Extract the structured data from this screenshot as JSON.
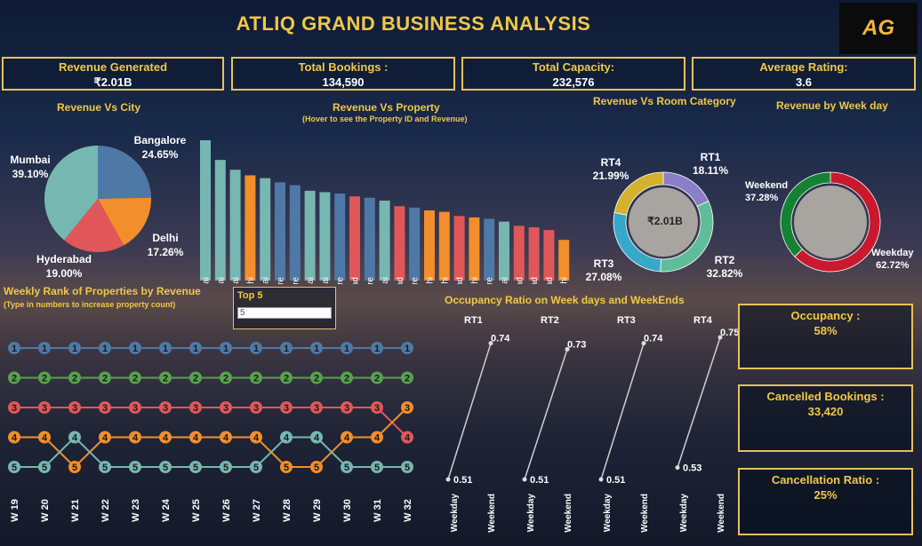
{
  "header": {
    "title": "ATLIQ GRAND BUSINESS ANALYSIS",
    "logo_text": "AG"
  },
  "kpis": {
    "revenue": {
      "label": "Revenue Generated",
      "value": "₹2.01B"
    },
    "bookings": {
      "label": "Total Bookings :",
      "value": "134,590"
    },
    "capacity": {
      "label": "Total Capacity:",
      "value": "232,576"
    },
    "rating": {
      "label": "Average Rating:",
      "value": "3.6"
    }
  },
  "revenue_vs_city": {
    "title": "Revenue Vs City",
    "slices": [
      {
        "city": "Bangalore",
        "pct": "24.65%",
        "value": 24.65,
        "color": "#4e79a7"
      },
      {
        "city": "Delhi",
        "pct": "17.26%",
        "value": 17.26,
        "color": "#f28e2b"
      },
      {
        "city": "Hyderabad",
        "pct": "19.00%",
        "value": 19.0,
        "color": "#e15759"
      },
      {
        "city": "Mumbai",
        "pct": "39.10%",
        "value": 39.1,
        "color": "#76b7b2"
      }
    ]
  },
  "revenue_vs_property": {
    "title": "Revenue Vs Property",
    "subtitle": "(Hover to see the Property ID and Revenue)",
    "bars": [
      {
        "city": "Mumbai",
        "value": 100
      },
      {
        "city": "Mumbai",
        "value": 86
      },
      {
        "city": "Mumbai",
        "value": 79
      },
      {
        "city": "Delhi",
        "value": 75
      },
      {
        "city": "Mumbai",
        "value": 73
      },
      {
        "city": "Bangalore",
        "value": 70
      },
      {
        "city": "Bangalore",
        "value": 68
      },
      {
        "city": "Mumbai",
        "value": 64
      },
      {
        "city": "Mumbai",
        "value": 63
      },
      {
        "city": "Bangalore",
        "value": 62
      },
      {
        "city": "Hyderabad",
        "value": 60
      },
      {
        "city": "Bangalore",
        "value": 59
      },
      {
        "city": "Mumbai",
        "value": 57
      },
      {
        "city": "Hyderabad",
        "value": 53
      },
      {
        "city": "Bangalore",
        "value": 52
      },
      {
        "city": "Delhi",
        "value": 50
      },
      {
        "city": "Delhi",
        "value": 49
      },
      {
        "city": "Hyderabad",
        "value": 46
      },
      {
        "city": "Delhi",
        "value": 45
      },
      {
        "city": "Bangalore",
        "value": 44
      },
      {
        "city": "Mumbai",
        "value": 42
      },
      {
        "city": "Hyderabad",
        "value": 39
      },
      {
        "city": "Hyderabad",
        "value": 38
      },
      {
        "city": "Hyderabad",
        "value": 36
      },
      {
        "city": "Delhi",
        "value": 29
      }
    ]
  },
  "revenue_vs_room": {
    "title": "Revenue Vs Room Category",
    "center": "₹2.01B",
    "slices": [
      {
        "name": "RT1",
        "pct": "18.11%",
        "value": 18.11,
        "color": "#8c7fc8"
      },
      {
        "name": "RT2",
        "pct": "32.82%",
        "value": 32.82,
        "color": "#5fbd9a"
      },
      {
        "name": "RT3",
        "pct": "27.08%",
        "value": 27.08,
        "color": "#38a8c8"
      },
      {
        "name": "RT4",
        "pct": "21.99%",
        "value": 21.99,
        "color": "#d4b12e"
      }
    ]
  },
  "revenue_by_weekday": {
    "title": "Revenue by Week day",
    "slices": [
      {
        "name": "Weekday",
        "pct": "62.72%",
        "value": 62.72,
        "color": "#c8192e"
      },
      {
        "name": "Weekend",
        "pct": "37.28%",
        "value": 37.28,
        "color": "#148232"
      }
    ]
  },
  "weekly_rank": {
    "title": "Weekly Rank of Properties by Revenue",
    "subtitle": "(Type in numbers to increase property count)",
    "weeks": [
      "W 19",
      "W 20",
      "W 21",
      "W 22",
      "W 23",
      "W 24",
      "W 25",
      "W 26",
      "W 27",
      "W 28",
      "W 29",
      "W 30",
      "W 31",
      "W 32"
    ],
    "series": [
      {
        "color": "#4e79a7",
        "ranks": [
          1,
          1,
          1,
          1,
          1,
          1,
          1,
          1,
          1,
          1,
          1,
          1,
          1,
          1
        ]
      },
      {
        "color": "#59a14f",
        "ranks": [
          2,
          2,
          2,
          2,
          2,
          2,
          2,
          2,
          2,
          2,
          2,
          2,
          2,
          2
        ]
      },
      {
        "color": "#e15759",
        "ranks": [
          3,
          3,
          3,
          3,
          3,
          3,
          3,
          3,
          3,
          3,
          3,
          3,
          3,
          4
        ]
      },
      {
        "color": "#f28e2b",
        "ranks": [
          4,
          4,
          5,
          4,
          4,
          4,
          4,
          4,
          4,
          5,
          5,
          4,
          4,
          3
        ]
      },
      {
        "color": "#76b7b2",
        "ranks": [
          5,
          5,
          4,
          5,
          5,
          5,
          5,
          5,
          5,
          4,
          4,
          5,
          5,
          5
        ]
      }
    ],
    "rank_labels": [
      "1",
      "2",
      "3",
      "4",
      "5"
    ]
  },
  "top_n": {
    "label": "Top 5",
    "value": "5"
  },
  "occupancy_ratio": {
    "title": "Occupancy Ratio on Week days and WeekEnds",
    "x_labels": [
      "Weekday",
      "Weekend"
    ],
    "groups": [
      {
        "name": "RT1",
        "weekday": 0.51,
        "weekend": 0.74,
        "weekday_label": "0.51",
        "weekend_label": "0.74"
      },
      {
        "name": "RT2",
        "weekday": 0.51,
        "weekend": 0.73,
        "weekday_label": "0.51",
        "weekend_label": "0.73"
      },
      {
        "name": "RT3",
        "weekday": 0.51,
        "weekend": 0.74,
        "weekday_label": "0.51",
        "weekend_label": "0.74"
      },
      {
        "name": "RT4",
        "weekday": 0.53,
        "weekend": 0.75,
        "weekday_label": "0.53",
        "weekend_label": "0.75"
      }
    ]
  },
  "side_kpis": {
    "occupancy": {
      "label": "Occupancy :",
      "value": "58%"
    },
    "cancelled": {
      "label": "Cancelled Bookings :",
      "value": "33,420"
    },
    "cancel_ratio": {
      "label": "Cancellation Ratio :",
      "value": "25%"
    }
  },
  "chart_data": [
    {
      "type": "pie",
      "title": "Revenue Vs City",
      "categories": [
        "Bangalore",
        "Delhi",
        "Hyderabad",
        "Mumbai"
      ],
      "values": [
        24.65,
        17.26,
        19.0,
        39.1
      ]
    },
    {
      "type": "bar",
      "title": "Revenue Vs Property",
      "categories": [
        "Mumbai",
        "Mumbai",
        "Mumbai",
        "Delhi",
        "Mumbai",
        "Bangalore",
        "Bangalore",
        "Mumbai",
        "Mumbai",
        "Bangalore",
        "Hyderabad",
        "Bangalore",
        "Mumbai",
        "Hyderabad",
        "Bangalore",
        "Delhi",
        "Delhi",
        "Hyderabad",
        "Delhi",
        "Bangalore",
        "Mumbai",
        "Hyderabad",
        "Hyderabad",
        "Hyderabad",
        "Delhi"
      ],
      "values": [
        100,
        86,
        79,
        75,
        73,
        70,
        68,
        64,
        63,
        62,
        60,
        59,
        57,
        53,
        52,
        50,
        49,
        46,
        45,
        44,
        42,
        39,
        38,
        36,
        29
      ]
    },
    {
      "type": "pie",
      "title": "Revenue Vs Room Category",
      "categories": [
        "RT1",
        "RT2",
        "RT3",
        "RT4"
      ],
      "values": [
        18.11,
        32.82,
        27.08,
        21.99
      ]
    },
    {
      "type": "pie",
      "title": "Revenue by Week day",
      "categories": [
        "Weekday",
        "Weekend"
      ],
      "values": [
        62.72,
        37.28
      ]
    },
    {
      "type": "line",
      "title": "Weekly Rank of Properties by Revenue",
      "x": [
        "W 19",
        "W 20",
        "W 21",
        "W 22",
        "W 23",
        "W 24",
        "W 25",
        "W 26",
        "W 27",
        "W 28",
        "W 29",
        "W 30",
        "W 31",
        "W 32"
      ],
      "series": [
        {
          "values": [
            1,
            1,
            1,
            1,
            1,
            1,
            1,
            1,
            1,
            1,
            1,
            1,
            1,
            1
          ]
        },
        {
          "values": [
            2,
            2,
            2,
            2,
            2,
            2,
            2,
            2,
            2,
            2,
            2,
            2,
            2,
            2
          ]
        },
        {
          "values": [
            3,
            3,
            3,
            3,
            3,
            3,
            3,
            3,
            3,
            3,
            3,
            3,
            3,
            4
          ]
        },
        {
          "values": [
            4,
            4,
            5,
            4,
            4,
            4,
            4,
            4,
            4,
            5,
            5,
            4,
            4,
            3
          ]
        },
        {
          "values": [
            5,
            5,
            4,
            5,
            5,
            5,
            5,
            5,
            5,
            4,
            4,
            5,
            5,
            5
          ]
        }
      ]
    },
    {
      "type": "line",
      "title": "Occupancy Ratio on Week days and WeekEnds",
      "categories": [
        "Weekday",
        "Weekend"
      ],
      "series": [
        {
          "name": "RT1",
          "values": [
            0.51,
            0.74
          ]
        },
        {
          "name": "RT2",
          "values": [
            0.51,
            0.73
          ]
        },
        {
          "name": "RT3",
          "values": [
            0.51,
            0.74
          ]
        },
        {
          "name": "RT4",
          "values": [
            0.53,
            0.75
          ]
        }
      ]
    }
  ],
  "colors": {
    "accent": "#f0c848",
    "border": "#e6c25c",
    "Mumbai": "#76b7b2",
    "Bangalore": "#4e79a7",
    "Delhi": "#f28e2b",
    "Hyderabad": "#e15759"
  }
}
